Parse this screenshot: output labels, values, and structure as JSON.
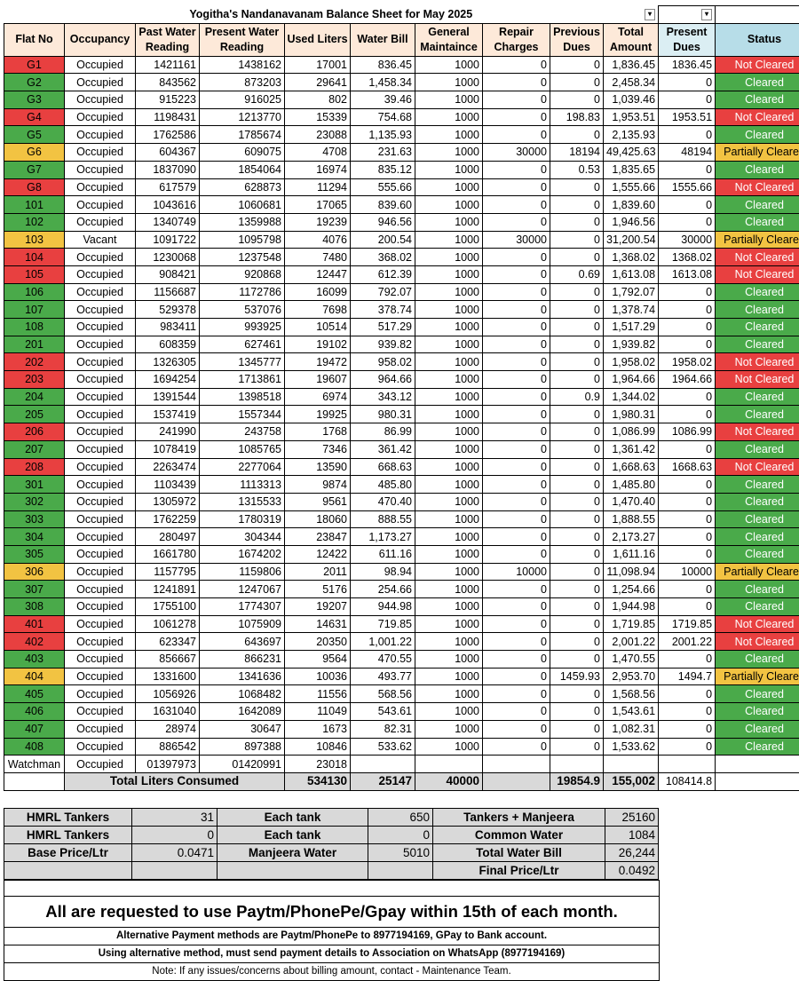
{
  "title": "Yogitha's Nandanavanam Balance Sheet for May 2025",
  "headers": {
    "flat_no": "Flat No",
    "occupancy": "Occupancy",
    "past_water": "Past Water Reading",
    "present_water": "Present Water Reading",
    "used_liters": "Used Liters",
    "water_bill": "Water Bill",
    "general": "General Maintaince",
    "repair": "Repair Charges",
    "previous": "Previous Dues",
    "total": "Total Amount",
    "present_dues": "Present Dues",
    "status": "Status"
  },
  "dropdown_icon": "▾",
  "rows": [
    {
      "flat": "G1",
      "occ": "Occupied",
      "past": "1421161",
      "present": "1438162",
      "used": "17001",
      "bill": "836.45",
      "gen": "1000",
      "rep": "0",
      "prev": "0",
      "total": "1,836.45",
      "due": "1836.45",
      "status": "Not Cleared",
      "color": "red"
    },
    {
      "flat": "G2",
      "occ": "Occupied",
      "past": "843562",
      "present": "873203",
      "used": "29641",
      "bill": "1,458.34",
      "gen": "1000",
      "rep": "0",
      "prev": "0",
      "total": "2,458.34",
      "due": "0",
      "status": "Cleared",
      "color": "green"
    },
    {
      "flat": "G3",
      "occ": "Occupied",
      "past": "915223",
      "present": "916025",
      "used": "802",
      "bill": "39.46",
      "gen": "1000",
      "rep": "0",
      "prev": "0",
      "total": "1,039.46",
      "due": "0",
      "status": "Cleared",
      "color": "green"
    },
    {
      "flat": "G4",
      "occ": "Occupied",
      "past": "1198431",
      "present": "1213770",
      "used": "15339",
      "bill": "754.68",
      "gen": "1000",
      "rep": "0",
      "prev": "198.83",
      "total": "1,953.51",
      "due": "1953.51",
      "status": "Not Cleared",
      "color": "red"
    },
    {
      "flat": "G5",
      "occ": "Occupied",
      "past": "1762586",
      "present": "1785674",
      "used": "23088",
      "bill": "1,135.93",
      "gen": "1000",
      "rep": "0",
      "prev": "0",
      "total": "2,135.93",
      "due": "0",
      "status": "Cleared",
      "color": "green"
    },
    {
      "flat": "G6",
      "occ": "Occupied",
      "past": "604367",
      "present": "609075",
      "used": "4708",
      "bill": "231.63",
      "gen": "1000",
      "rep": "30000",
      "prev": "18194",
      "total": "49,425.63",
      "due": "48194",
      "status": "Partially Cleared",
      "color": "amber"
    },
    {
      "flat": "G7",
      "occ": "Occupied",
      "past": "1837090",
      "present": "1854064",
      "used": "16974",
      "bill": "835.12",
      "gen": "1000",
      "rep": "0",
      "prev": "0.53",
      "total": "1,835.65",
      "due": "0",
      "status": "Cleared",
      "color": "green"
    },
    {
      "flat": "G8",
      "occ": "Occupied",
      "past": "617579",
      "present": "628873",
      "used": "11294",
      "bill": "555.66",
      "gen": "1000",
      "rep": "0",
      "prev": "0",
      "total": "1,555.66",
      "due": "1555.66",
      "status": "Not Cleared",
      "color": "red"
    },
    {
      "flat": "101",
      "occ": "Occupied",
      "past": "1043616",
      "present": "1060681",
      "used": "17065",
      "bill": "839.60",
      "gen": "1000",
      "rep": "0",
      "prev": "0",
      "total": "1,839.60",
      "due": "0",
      "status": "Cleared",
      "color": "green"
    },
    {
      "flat": "102",
      "occ": "Occupied",
      "past": "1340749",
      "present": "1359988",
      "used": "19239",
      "bill": "946.56",
      "gen": "1000",
      "rep": "0",
      "prev": "0",
      "total": "1,946.56",
      "due": "0",
      "status": "Cleared",
      "color": "green"
    },
    {
      "flat": "103",
      "occ": "Vacant",
      "past": "1091722",
      "present": "1095798",
      "used": "4076",
      "bill": "200.54",
      "gen": "1000",
      "rep": "30000",
      "prev": "0",
      "total": "31,200.54",
      "due": "30000",
      "status": "Partially Cleared",
      "color": "amber"
    },
    {
      "flat": "104",
      "occ": "Occupied",
      "past": "1230068",
      "present": "1237548",
      "used": "7480",
      "bill": "368.02",
      "gen": "1000",
      "rep": "0",
      "prev": "0",
      "total": "1,368.02",
      "due": "1368.02",
      "status": "Not Cleared",
      "color": "red"
    },
    {
      "flat": "105",
      "occ": "Occupied",
      "past": "908421",
      "present": "920868",
      "used": "12447",
      "bill": "612.39",
      "gen": "1000",
      "rep": "0",
      "prev": "0.69",
      "total": "1,613.08",
      "due": "1613.08",
      "status": "Not Cleared",
      "color": "red"
    },
    {
      "flat": "106",
      "occ": "Occupied",
      "past": "1156687",
      "present": "1172786",
      "used": "16099",
      "bill": "792.07",
      "gen": "1000",
      "rep": "0",
      "prev": "0",
      "total": "1,792.07",
      "due": "0",
      "status": "Cleared",
      "color": "green"
    },
    {
      "flat": "107",
      "occ": "Occupied",
      "past": "529378",
      "present": "537076",
      "used": "7698",
      "bill": "378.74",
      "gen": "1000",
      "rep": "0",
      "prev": "0",
      "total": "1,378.74",
      "due": "0",
      "status": "Cleared",
      "color": "green"
    },
    {
      "flat": "108",
      "occ": "Occupied",
      "past": "983411",
      "present": "993925",
      "used": "10514",
      "bill": "517.29",
      "gen": "1000",
      "rep": "0",
      "prev": "0",
      "total": "1,517.29",
      "due": "0",
      "status": "Cleared",
      "color": "green"
    },
    {
      "flat": "201",
      "occ": "Occupied",
      "past": "608359",
      "present": "627461",
      "used": "19102",
      "bill": "939.82",
      "gen": "1000",
      "rep": "0",
      "prev": "0",
      "total": "1,939.82",
      "due": "0",
      "status": "Cleared",
      "color": "green"
    },
    {
      "flat": "202",
      "occ": "Occupied",
      "past": "1326305",
      "present": "1345777",
      "used": "19472",
      "bill": "958.02",
      "gen": "1000",
      "rep": "0",
      "prev": "0",
      "total": "1,958.02",
      "due": "1958.02",
      "status": "Not Cleared",
      "color": "red"
    },
    {
      "flat": "203",
      "occ": "Occupied",
      "past": "1694254",
      "present": "1713861",
      "used": "19607",
      "bill": "964.66",
      "gen": "1000",
      "rep": "0",
      "prev": "0",
      "total": "1,964.66",
      "due": "1964.66",
      "status": "Not Cleared",
      "color": "red"
    },
    {
      "flat": "204",
      "occ": "Occupied",
      "past": "1391544",
      "present": "1398518",
      "used": "6974",
      "bill": "343.12",
      "gen": "1000",
      "rep": "0",
      "prev": "0.9",
      "total": "1,344.02",
      "due": "0",
      "status": "Cleared",
      "color": "green"
    },
    {
      "flat": "205",
      "occ": "Occupied",
      "past": "1537419",
      "present": "1557344",
      "used": "19925",
      "bill": "980.31",
      "gen": "1000",
      "rep": "0",
      "prev": "0",
      "total": "1,980.31",
      "due": "0",
      "status": "Cleared",
      "color": "green"
    },
    {
      "flat": "206",
      "occ": "Occupied",
      "past": "241990",
      "present": "243758",
      "used": "1768",
      "bill": "86.99",
      "gen": "1000",
      "rep": "0",
      "prev": "0",
      "total": "1,086.99",
      "due": "1086.99",
      "status": "Not Cleared",
      "color": "red"
    },
    {
      "flat": "207",
      "occ": "Occupied",
      "past": "1078419",
      "present": "1085765",
      "used": "7346",
      "bill": "361.42",
      "gen": "1000",
      "rep": "0",
      "prev": "0",
      "total": "1,361.42",
      "due": "0",
      "status": "Cleared",
      "color": "green"
    },
    {
      "flat": "208",
      "occ": "Occupied",
      "past": "2263474",
      "present": "2277064",
      "used": "13590",
      "bill": "668.63",
      "gen": "1000",
      "rep": "0",
      "prev": "0",
      "total": "1,668.63",
      "due": "1668.63",
      "status": "Not Cleared",
      "color": "red"
    },
    {
      "flat": "301",
      "occ": "Occupied",
      "past": "1103439",
      "present": "1113313",
      "used": "9874",
      "bill": "485.80",
      "gen": "1000",
      "rep": "0",
      "prev": "0",
      "total": "1,485.80",
      "due": "0",
      "status": "Cleared",
      "color": "green"
    },
    {
      "flat": "302",
      "occ": "Occupied",
      "past": "1305972",
      "present": "1315533",
      "used": "9561",
      "bill": "470.40",
      "gen": "1000",
      "rep": "0",
      "prev": "0",
      "total": "1,470.40",
      "due": "0",
      "status": "Cleared",
      "color": "green"
    },
    {
      "flat": "303",
      "occ": "Occupied",
      "past": "1762259",
      "present": "1780319",
      "used": "18060",
      "bill": "888.55",
      "gen": "1000",
      "rep": "0",
      "prev": "0",
      "total": "1,888.55",
      "due": "0",
      "status": "Cleared",
      "color": "green"
    },
    {
      "flat": "304",
      "occ": "Occupied",
      "past": "280497",
      "present": "304344",
      "used": "23847",
      "bill": "1,173.27",
      "gen": "1000",
      "rep": "0",
      "prev": "0",
      "total": "2,173.27",
      "due": "0",
      "status": "Cleared",
      "color": "green"
    },
    {
      "flat": "305",
      "occ": "Occupied",
      "past": "1661780",
      "present": "1674202",
      "used": "12422",
      "bill": "611.16",
      "gen": "1000",
      "rep": "0",
      "prev": "0",
      "total": "1,611.16",
      "due": "0",
      "status": "Cleared",
      "color": "green"
    },
    {
      "flat": "306",
      "occ": "Occupied",
      "past": "1157795",
      "present": "1159806",
      "used": "2011",
      "bill": "98.94",
      "gen": "1000",
      "rep": "10000",
      "prev": "0",
      "total": "11,098.94",
      "due": "10000",
      "status": "Partially Cleared",
      "color": "amber"
    },
    {
      "flat": "307",
      "occ": "Occupied",
      "past": "1241891",
      "present": "1247067",
      "used": "5176",
      "bill": "254.66",
      "gen": "1000",
      "rep": "0",
      "prev": "0",
      "total": "1,254.66",
      "due": "0",
      "status": "Cleared",
      "color": "green"
    },
    {
      "flat": "308",
      "occ": "Occupied",
      "past": "1755100",
      "present": "1774307",
      "used": "19207",
      "bill": "944.98",
      "gen": "1000",
      "rep": "0",
      "prev": "0",
      "total": "1,944.98",
      "due": "0",
      "status": "Cleared",
      "color": "green"
    },
    {
      "flat": "401",
      "occ": "Occupied",
      "past": "1061278",
      "present": "1075909",
      "used": "14631",
      "bill": "719.85",
      "gen": "1000",
      "rep": "0",
      "prev": "0",
      "total": "1,719.85",
      "due": "1719.85",
      "status": "Not Cleared",
      "color": "red"
    },
    {
      "flat": "402",
      "occ": "Occupied",
      "past": "623347",
      "present": "643697",
      "used": "20350",
      "bill": "1,001.22",
      "gen": "1000",
      "rep": "0",
      "prev": "0",
      "total": "2,001.22",
      "due": "2001.22",
      "status": "Not Cleared",
      "color": "red"
    },
    {
      "flat": "403",
      "occ": "Occupied",
      "past": "856667",
      "present": "866231",
      "used": "9564",
      "bill": "470.55",
      "gen": "1000",
      "rep": "0",
      "prev": "0",
      "total": "1,470.55",
      "due": "0",
      "status": "Cleared",
      "color": "green"
    },
    {
      "flat": "404",
      "occ": "Occupied",
      "past": "1331600",
      "present": "1341636",
      "used": "10036",
      "bill": "493.77",
      "gen": "1000",
      "rep": "0",
      "prev": "1459.93",
      "total": "2,953.70",
      "due": "1494.7",
      "status": "Partially Cleared",
      "color": "amber"
    },
    {
      "flat": "405",
      "occ": "Occupied",
      "past": "1056926",
      "present": "1068482",
      "used": "11556",
      "bill": "568.56",
      "gen": "1000",
      "rep": "0",
      "prev": "0",
      "total": "1,568.56",
      "due": "0",
      "status": "Cleared",
      "color": "green"
    },
    {
      "flat": "406",
      "occ": "Occupied",
      "past": "1631040",
      "present": "1642089",
      "used": "11049",
      "bill": "543.61",
      "gen": "1000",
      "rep": "0",
      "prev": "0",
      "total": "1,543.61",
      "due": "0",
      "status": "Cleared",
      "color": "green"
    },
    {
      "flat": "407",
      "occ": "Occupied",
      "past": "28974",
      "present": "30647",
      "used": "1673",
      "bill": "82.31",
      "gen": "1000",
      "rep": "0",
      "prev": "0",
      "total": "1,082.31",
      "due": "0",
      "status": "Cleared",
      "color": "green"
    },
    {
      "flat": "408",
      "occ": "Occupied",
      "past": "886542",
      "present": "897388",
      "used": "10846",
      "bill": "533.62",
      "gen": "1000",
      "rep": "0",
      "prev": "0",
      "total": "1,533.62",
      "due": "0",
      "status": "Cleared",
      "color": "green"
    },
    {
      "flat": "Watchman",
      "occ": "Occupied",
      "past": "01397973",
      "present": "01420991",
      "used": "23018",
      "bill": "",
      "gen": "",
      "rep": "",
      "prev": "",
      "total": "",
      "due": "",
      "status": "",
      "color": "none"
    }
  ],
  "totals": {
    "label": "Total Liters Consumed",
    "used": "534130",
    "bill": "25147",
    "gen": "40000",
    "prev": "19854.9",
    "total": "155,002",
    "due": "108414.8"
  },
  "summary": [
    {
      "l1": "HMRL Tankers",
      "v1": "31",
      "l2": "Each tank",
      "v2": "650",
      "l3": "Tankers + Manjeera",
      "v3": "25160"
    },
    {
      "l1": "HMRL Tankers",
      "v1": "0",
      "l2": "Each tank",
      "v2": "0",
      "l3": "Common Water",
      "v3": "1084"
    },
    {
      "l1": "Base Price/Ltr",
      "v1": "0.0471",
      "l2": "Manjeera Water",
      "v2": "5010",
      "l3": "Total Water Bill",
      "v3": "26,244"
    },
    {
      "l1": "",
      "v1": "",
      "l2": "",
      "v2": "",
      "l3": "Final Price/Ltr",
      "v3": "0.0492"
    }
  ],
  "notes": {
    "main": "All are requested to use  Paytm/PhonePe/Gpay within 15th of each month.",
    "alt": "Alternative Payment methods are Paytm/PhonePe to 8977194169, GPay to Bank account.",
    "whatsapp": "Using alternative method, must send payment details to Association on WhatsApp (8977194169)",
    "contact": "Note: If any issues/concerns about billing amount, contact  - Maintenance Team."
  }
}
